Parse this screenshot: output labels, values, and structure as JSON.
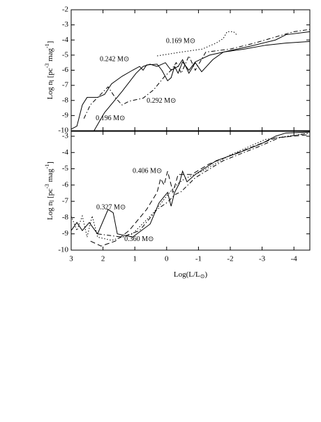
{
  "chart_data": [
    {
      "type": "line",
      "ylabel": [
        "Log n",
        "l",
        " [pc",
        "-3",
        " mag",
        "-1",
        "]"
      ],
      "xlim": [
        3,
        -4.5
      ],
      "ylim": [
        -10,
        -2
      ],
      "yticks": [
        -10,
        -9,
        -8,
        -7,
        -6,
        -5,
        -4,
        -3,
        -2
      ],
      "series": [
        {
          "color": "#000",
          "dash": "solid",
          "x": [
            2.28,
            1.95,
            1.4,
            0.96,
            0.74,
            0.52,
            0.3,
            0.04,
            -0.14,
            -0.36,
            -0.5,
            -0.7,
            -0.9,
            -1.1,
            -1.45,
            -1.78,
            -2.44,
            -3.1,
            -3.75,
            -4.5
          ],
          "values": [
            -10,
            -8.8,
            -7.4,
            -6.2,
            -5.75,
            -5.6,
            -5.75,
            -5.5,
            -6,
            -5.75,
            -5.3,
            -6.2,
            -5.5,
            -6.1,
            -5.3,
            -4.8,
            -4.6,
            -4.35,
            -4.2,
            -4.1
          ]
        },
        {
          "color": "#000",
          "dash": "solid",
          "x": [
            3,
            2.82,
            2.65,
            2.5,
            2.17,
            1.95,
            1.73,
            1.4,
            1.07,
            0.85,
            0.74,
            0.63,
            0.3,
            0.15,
            -0.03,
            -0.14,
            -0.25,
            -0.36,
            -0.5,
            -0.7,
            -0.9,
            -1.35,
            -2,
            -2.65,
            -3.42,
            -3.75,
            -4.5
          ],
          "values": [
            -9.9,
            -9.7,
            -8.3,
            -7.8,
            -7.8,
            -7.6,
            -6.9,
            -6.4,
            -6,
            -5.75,
            -6,
            -5.65,
            -5.6,
            -6,
            -6.7,
            -6.5,
            -5.75,
            -6.2,
            -5.45,
            -6,
            -5.45,
            -5,
            -4.7,
            -4.4,
            -4,
            -3.65,
            -3.45
          ]
        },
        {
          "color": "#000",
          "dash": "dashdot",
          "x": [
            2.6,
            2.4,
            1.84,
            1.62,
            1.4,
            1.18,
            0.74,
            0.41,
            0.08,
            -0.14,
            -0.3,
            -0.46,
            -0.7,
            -0.9,
            -1.23,
            -2,
            -2.77,
            -3.42,
            -4,
            -4.5
          ],
          "values": [
            -9.2,
            -8.3,
            -7.1,
            -7.8,
            -8.3,
            -8.05,
            -7.85,
            -7.3,
            -6.45,
            -6,
            -5.5,
            -6.2,
            -5.05,
            -6,
            -4.8,
            -4.6,
            -4.2,
            -3.8,
            -3.45,
            -3.3
          ]
        },
        {
          "color": "#000",
          "dash": "dotted",
          "x": [
            0.3,
            -0.46,
            -1.12,
            -1.56,
            -1.78,
            -1.9,
            -2.1,
            -2.2
          ],
          "values": [
            -5.05,
            -4.8,
            -4.6,
            -4.2,
            -3.9,
            -3.45,
            -3.45,
            -3.65
          ]
        }
      ],
      "annotations": [
        {
          "text": "0.169 M⊙",
          "x": 0.02,
          "y": -4.1
        },
        {
          "text": "0.242 M⊙",
          "x": 2.1,
          "y": -5.3
        },
        {
          "text": "0.292 M⊙",
          "x": 0.63,
          "y": -8.05
        },
        {
          "text": "0.196 M⊙",
          "x": 2.23,
          "y": -9.2
        }
      ]
    },
    {
      "type": "line",
      "ylabel": [
        "Log n",
        "l",
        " [pc",
        "-3",
        " mag",
        "-1",
        "]"
      ],
      "xlabel": [
        "Log(L/L",
        "⊙",
        ")"
      ],
      "xlim": [
        3,
        -4.5
      ],
      "ylim": [
        -10,
        -2.7
      ],
      "xticks": [
        3,
        2,
        1,
        0,
        -1,
        -2,
        -3,
        -4
      ],
      "yticks": [
        -10,
        -9,
        -8,
        -7,
        -6,
        -5,
        -4,
        -3
      ],
      "series": [
        {
          "color": "#000",
          "dash": "solid",
          "x": [
            3,
            2.82,
            2.65,
            2.43,
            2.32,
            2.17,
            1.84,
            1.68,
            1.55,
            1.07,
            0.52,
            0.24,
            -0.03,
            -0.14,
            -0.25,
            -0.4,
            -0.5,
            -0.64,
            -0.9,
            -1.56,
            -2.22,
            -2.99,
            -3.42,
            -3.75,
            -4.5
          ],
          "values": [
            -8.8,
            -8.3,
            -8.8,
            -8.3,
            -8.6,
            -9,
            -7.5,
            -7.7,
            -9,
            -9.2,
            -8.4,
            -7.1,
            -6.45,
            -7.3,
            -6.45,
            -5.9,
            -5.15,
            -5.8,
            -5.35,
            -4.5,
            -4.05,
            -3.45,
            -3,
            -2.8,
            -2.75
          ]
        },
        {
          "color": "#000",
          "dash": "dotted",
          "x": [
            3,
            2.82,
            2.65,
            2.5,
            2.34,
            2.17,
            1.73,
            1.07,
            0.41,
            -0.03,
            -0.36,
            -0.58,
            -1.12,
            -2,
            -3.1,
            -4.5
          ],
          "values": [
            -7.9,
            -8.8,
            -7.9,
            -9.2,
            -7.9,
            -9.2,
            -9.4,
            -9,
            -7.7,
            -6.6,
            -5.9,
            -5.6,
            -5.15,
            -4.15,
            -3.2,
            -2.8
          ]
        },
        {
          "color": "#000",
          "dash": "dashed",
          "x": [
            2.39,
            2.06,
            1.62,
            1.18,
            0.63,
            0.3,
            0.19,
            0.08,
            -0.03,
            -0.2,
            -0.36,
            -0.79,
            -1.34,
            -2.44,
            -3.42,
            -4.5
          ],
          "values": [
            -9.45,
            -9.75,
            -9.45,
            -8.8,
            -7.5,
            -6.45,
            -5.6,
            -6,
            -5.15,
            -6.45,
            -5.35,
            -5.35,
            -4.7,
            -3.85,
            -3.1,
            -2.9
          ]
        },
        {
          "color": "#000",
          "dash": "dashdot",
          "x": [
            2.17,
            1.4,
            0.85,
            0.3,
            -0.03,
            -0.25,
            -0.46,
            -0.9,
            -1.78,
            -2.88,
            -3.53,
            -4.5
          ],
          "values": [
            -9,
            -9.2,
            -8.8,
            -7.5,
            -7.05,
            -6.6,
            -6.4,
            -5.55,
            -4.5,
            -3.65,
            -3.1,
            -2.8
          ]
        }
      ],
      "annotations": [
        {
          "text": "0.406 M⊙",
          "x": 1.07,
          "y": -5.15
        },
        {
          "text": "0.327 M⊙",
          "x": 2.21,
          "y": -7.4
        },
        {
          "text": "0.360 M⊙",
          "x": 1.33,
          "y": -9.35
        }
      ]
    }
  ]
}
